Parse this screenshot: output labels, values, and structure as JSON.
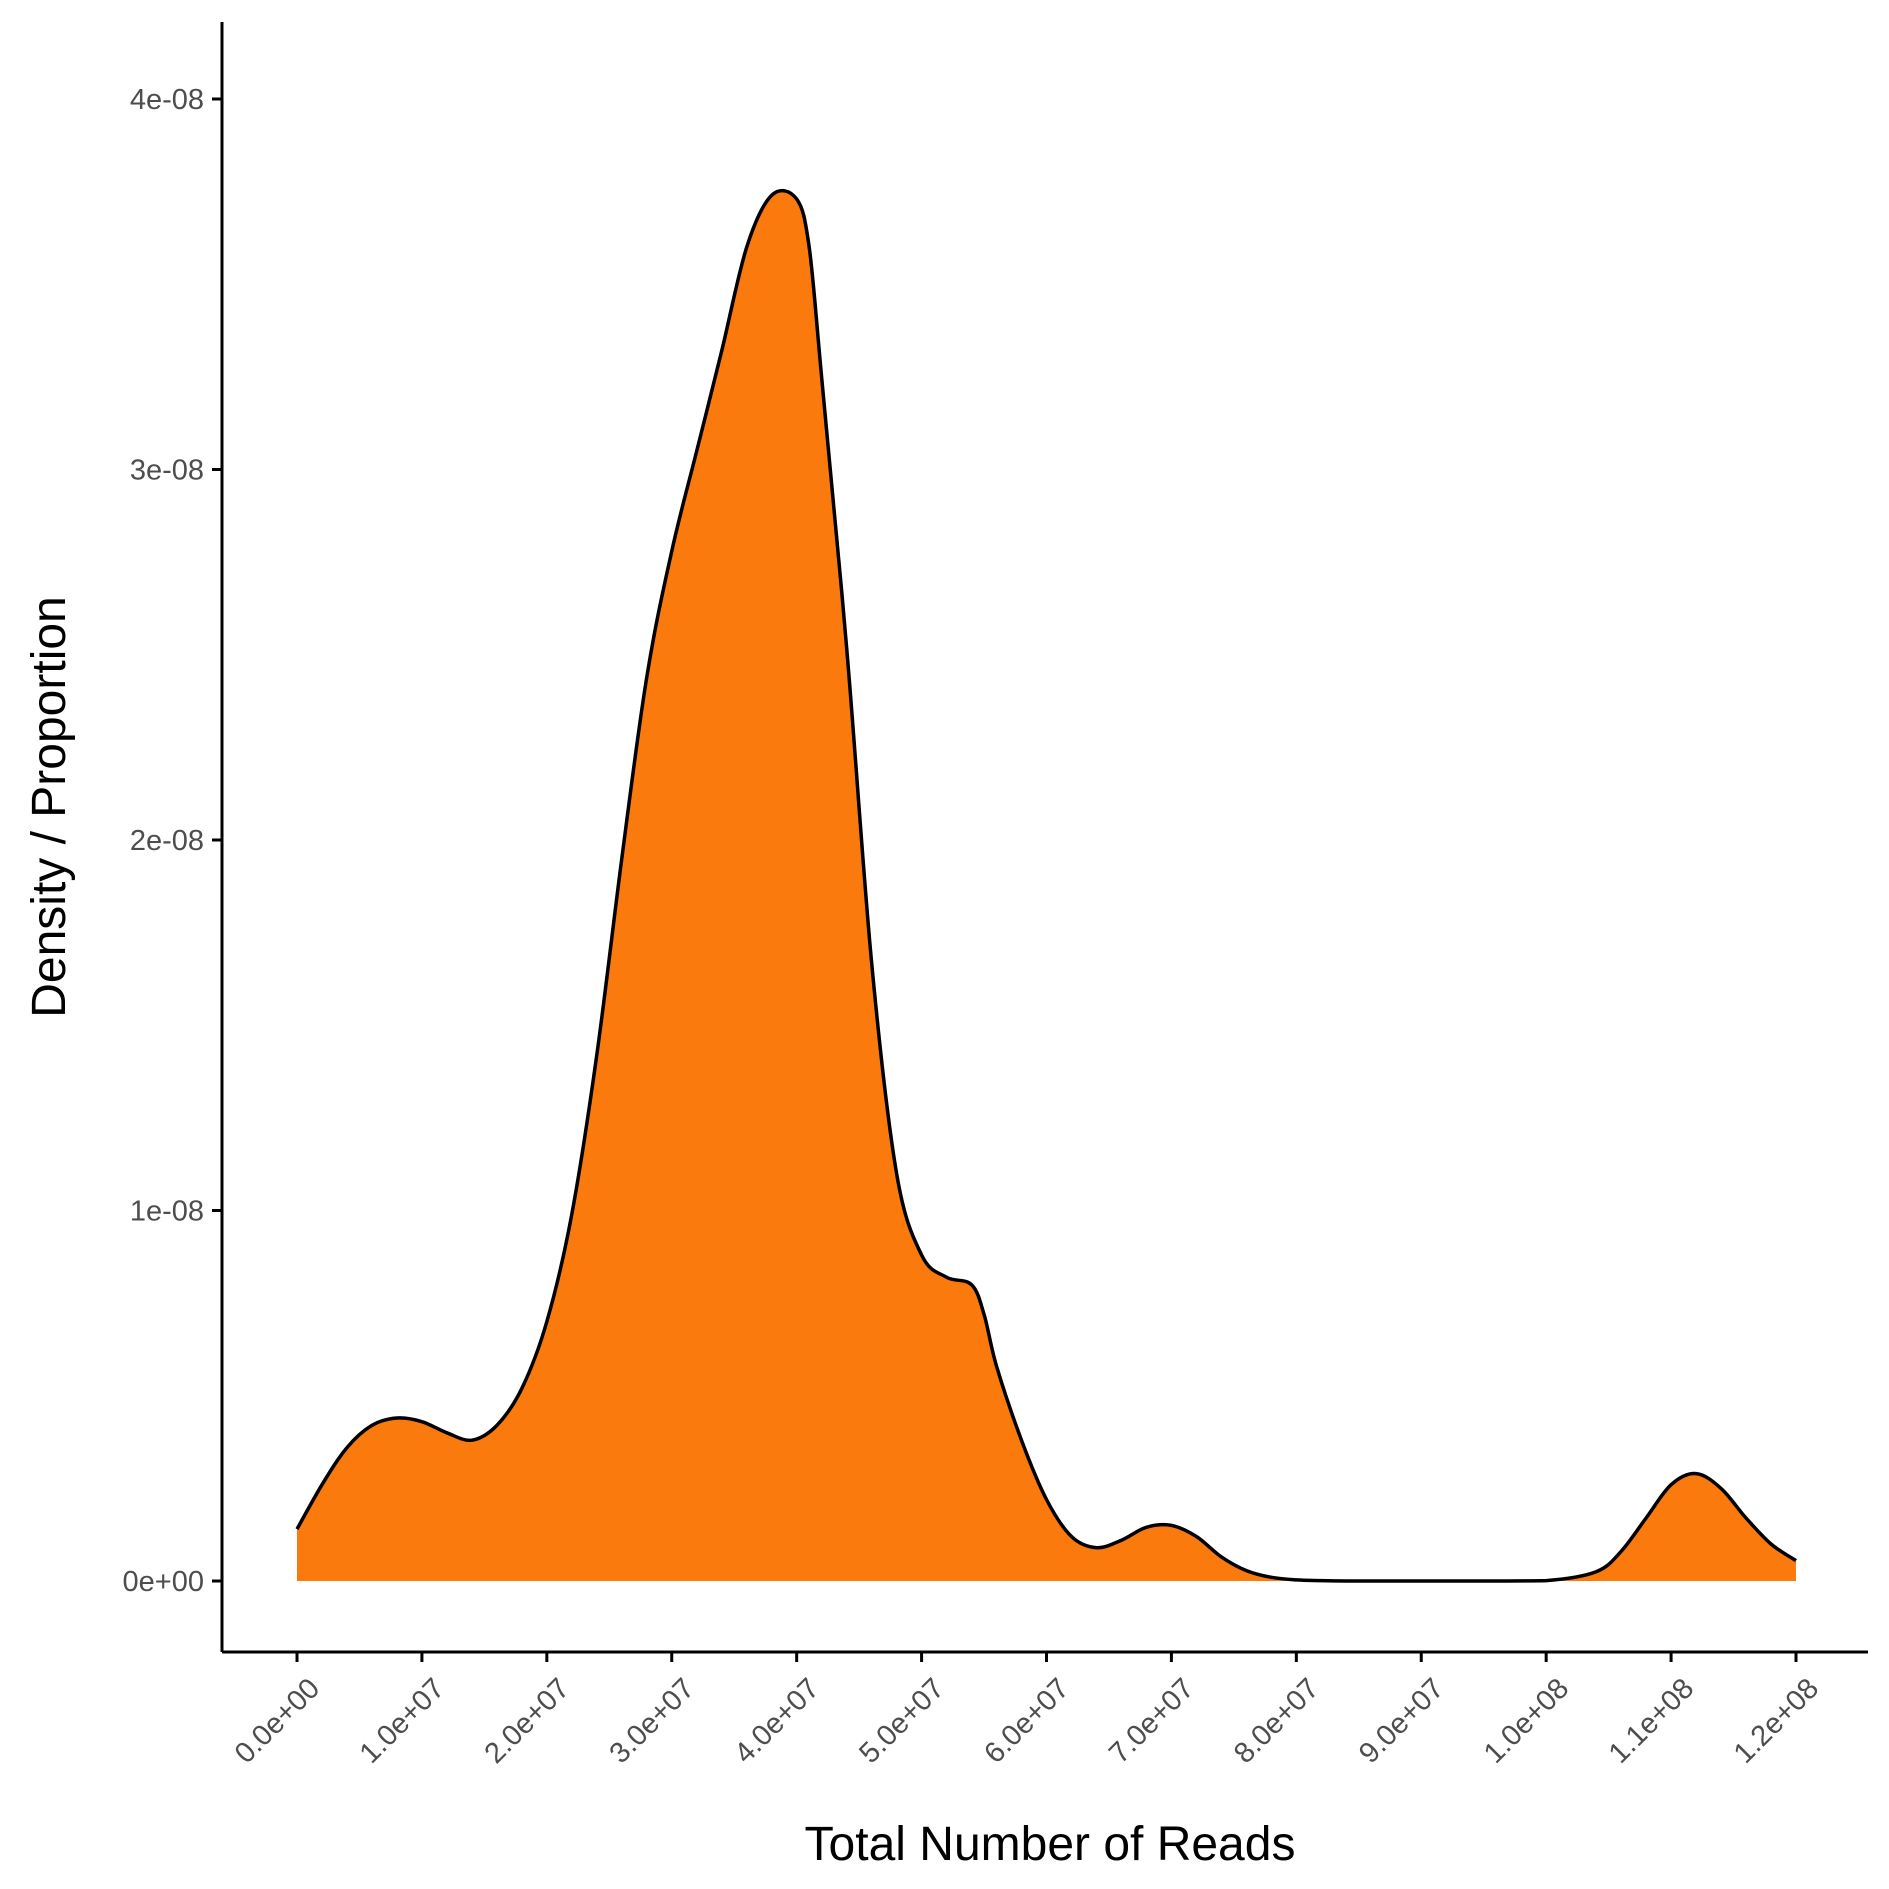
{
  "chart_data": {
    "type": "area",
    "title": "",
    "xlabel": "Total Number of Reads",
    "ylabel": "Density / Proportion",
    "xlim": [
      -3000000,
      126000000
    ],
    "ylim": [
      -2e-09,
      4.2e-08
    ],
    "grid": false,
    "fill_color": "#FA7A0E",
    "line_color": "#000000",
    "x_ticks": [
      {
        "value": 0,
        "label": "0.0e+00"
      },
      {
        "value": 10000000,
        "label": "1.0e+07"
      },
      {
        "value": 20000000,
        "label": "2.0e+07"
      },
      {
        "value": 30000000,
        "label": "3.0e+07"
      },
      {
        "value": 40000000,
        "label": "4.0e+07"
      },
      {
        "value": 50000000,
        "label": "5.0e+07"
      },
      {
        "value": 60000000,
        "label": "6.0e+07"
      },
      {
        "value": 70000000,
        "label": "7.0e+07"
      },
      {
        "value": 80000000,
        "label": "8.0e+07"
      },
      {
        "value": 90000000,
        "label": "9.0e+07"
      },
      {
        "value": 100000000,
        "label": "1.0e+08"
      },
      {
        "value": 110000000,
        "label": "1.1e+08"
      },
      {
        "value": 120000000,
        "label": "1.2e+08"
      }
    ],
    "y_ticks": [
      {
        "value": 0,
        "label": "0e+00"
      },
      {
        "value": 1e-08,
        "label": "1e-08"
      },
      {
        "value": 2e-08,
        "label": "2e-08"
      },
      {
        "value": 3e-08,
        "label": "3e-08"
      },
      {
        "value": 4e-08,
        "label": "4e-08"
      }
    ],
    "series": [
      {
        "x": [
          0,
          2000000,
          4000000,
          6000000,
          8000000,
          10000000,
          12000000,
          14000000,
          16000000,
          18000000,
          20000000,
          22000000,
          24000000,
          26000000,
          28000000,
          30000000,
          32000000,
          34000000,
          36000000,
          38000000,
          40000000,
          41000000,
          42000000,
          44000000,
          46000000,
          48000000,
          50000000,
          52000000,
          54000000,
          55000000,
          56000000,
          58000000,
          60000000,
          62000000,
          64000000,
          66000000,
          68000000,
          70000000,
          72000000,
          74000000,
          76000000,
          78000000,
          80000000,
          82000000,
          84000000,
          86000000,
          88000000,
          90000000,
          95000000,
          100000000,
          104000000,
          106000000,
          108000000,
          110000000,
          112000000,
          114000000,
          116000000,
          118000000,
          120000000
        ],
        "y": [
          1.4e-09,
          2.6e-09,
          3.6e-09,
          4.2e-09,
          4.4e-09,
          4.3e-09,
          4e-09,
          3.8e-09,
          4.2e-09,
          5.2e-09,
          7e-09,
          9.9e-09,
          1.42e-08,
          1.95e-08,
          2.44e-08,
          2.78e-08,
          3.05e-08,
          3.32e-08,
          3.6e-08,
          3.74e-08,
          3.73e-08,
          3.6e-08,
          3.25e-08,
          2.52e-08,
          1.67e-08,
          1.1e-08,
          8.8e-09,
          8.2e-09,
          8e-09,
          7.2e-09,
          5.8e-09,
          3.8e-09,
          2.2e-09,
          1.2e-09,
          9e-10,
          1.1e-09,
          1.45e-09,
          1.5e-09,
          1.2e-09,
          6.5e-10,
          2.8e-10,
          1e-10,
          3e-11,
          1e-11,
          0,
          0,
          0,
          0,
          0,
          1e-11,
          2.5e-10,
          8e-10,
          1.7e-09,
          2.6e-09,
          2.9e-09,
          2.5e-09,
          1.7e-09,
          1e-09,
          5.5e-10
        ]
      }
    ]
  }
}
